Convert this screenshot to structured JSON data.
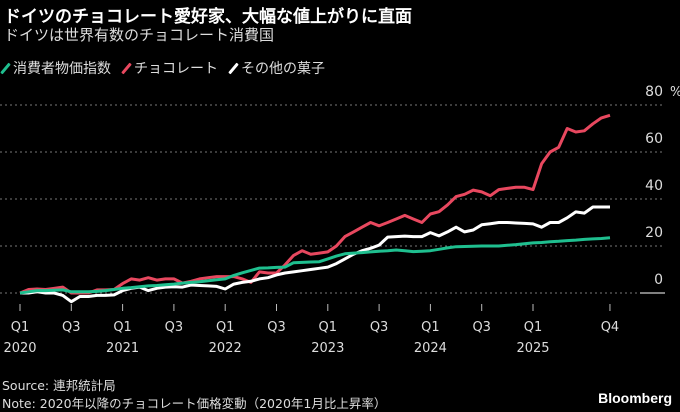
{
  "title": "ドイツのチョコレート愛好家、大幅な値上がりに直面",
  "subtitle": "ドイツは世界有数のチョコレート消費国",
  "source": "Source: 連邦統計局",
  "note": "Note: 2020年以降のチョコレート価格変動（2020年1月比上昇率）",
  "brand": "Bloomberg",
  "chart_data": {
    "type": "line",
    "title": "ドイツのチョコレート愛好家、大幅な値上がりに直面",
    "x_start": "2020-01",
    "x_end": "2025-10",
    "x_step": "month",
    "ylim": [
      0,
      80
    ],
    "yticks": [
      "0",
      "20",
      "40",
      "60",
      "80"
    ],
    "y_unit": "%",
    "grid": true,
    "legend_position": "top-left",
    "xticks": [
      {
        "month": 0,
        "q": "Q1",
        "year": "2020"
      },
      {
        "month": 6,
        "q": "Q3",
        "year": ""
      },
      {
        "month": 12,
        "q": "Q1",
        "year": "2021"
      },
      {
        "month": 18,
        "q": "Q3",
        "year": ""
      },
      {
        "month": 24,
        "q": "Q1",
        "year": "2022"
      },
      {
        "month": 30,
        "q": "Q3",
        "year": ""
      },
      {
        "month": 36,
        "q": "Q1",
        "year": "2023"
      },
      {
        "month": 42,
        "q": "Q3",
        "year": ""
      },
      {
        "month": 48,
        "q": "Q1",
        "year": "2024"
      },
      {
        "month": 54,
        "q": "Q3",
        "year": ""
      },
      {
        "month": 60,
        "q": "Q1",
        "year": "2025"
      },
      {
        "month": 69,
        "q": "Q4",
        "year": ""
      }
    ],
    "series": [
      {
        "name": "消費者物価指数",
        "color": "#1fbf8f",
        "values": [
          0,
          0.5,
          1,
          1,
          1.2,
          1.3,
          0.5,
          0.5,
          0.5,
          0.7,
          1,
          1.5,
          2,
          2.3,
          2.7,
          3,
          3.2,
          3.5,
          3.8,
          4.2,
          4.5,
          4.8,
          5.2,
          5.6,
          6,
          7.5,
          8.6,
          9.6,
          10.6,
          10.7,
          10.9,
          11,
          12.9,
          13,
          13.2,
          13.3,
          14.5,
          15.7,
          16.7,
          17,
          17.2,
          17.5,
          17.8,
          18,
          18.3,
          18,
          17.6,
          17.8,
          18,
          18.6,
          19.2,
          19.7,
          19.8,
          19.9,
          20,
          20,
          20,
          20.3,
          20.6,
          21,
          21.3,
          21.5,
          21.8,
          22,
          22.3,
          22.5,
          22.8,
          23,
          23.2,
          23.5
        ]
      },
      {
        "name": "チョコレート",
        "color": "#e8485f",
        "values": [
          0,
          1.5,
          1.7,
          1.5,
          2,
          2.5,
          0,
          0,
          0,
          1.3,
          1.3,
          1.5,
          4,
          6,
          5.5,
          6.5,
          5.5,
          6,
          6,
          4.2,
          5,
          6,
          6.5,
          7,
          7,
          7,
          6,
          4.5,
          9,
          8.5,
          8.5,
          12,
          16,
          18,
          16.5,
          17,
          17.5,
          20,
          24,
          26,
          28,
          30,
          28.6,
          30,
          31.5,
          33,
          31.5,
          30,
          33.6,
          34.6,
          37.5,
          41,
          42,
          43.8,
          43,
          41.4,
          44,
          44.5,
          45,
          45,
          44,
          55,
          60,
          62,
          70,
          68.5,
          69,
          72,
          74.5,
          75.6
        ]
      },
      {
        "name": "その他の菓子",
        "color": "#ffffff",
        "values": [
          0,
          0,
          0.5,
          0,
          0,
          -1,
          -3.7,
          -1.5,
          -1.5,
          -1,
          -1,
          -0.8,
          1,
          2,
          2.5,
          1,
          2,
          2.5,
          2.7,
          2.5,
          3.4,
          3.2,
          3,
          2.8,
          1.7,
          3.8,
          4.5,
          5,
          6,
          6.5,
          7.7,
          8.5,
          9,
          9.5,
          10,
          10.5,
          11,
          12.5,
          14.5,
          16.5,
          18,
          19,
          20.4,
          23.8,
          24,
          24.2,
          24,
          24,
          25.7,
          24.3,
          26,
          28,
          26,
          26.8,
          29,
          29.5,
          30,
          30,
          29.8,
          29.6,
          29.4,
          28,
          30,
          30,
          32,
          34.5,
          34,
          36.6,
          36.6,
          36.6
        ]
      }
    ]
  }
}
